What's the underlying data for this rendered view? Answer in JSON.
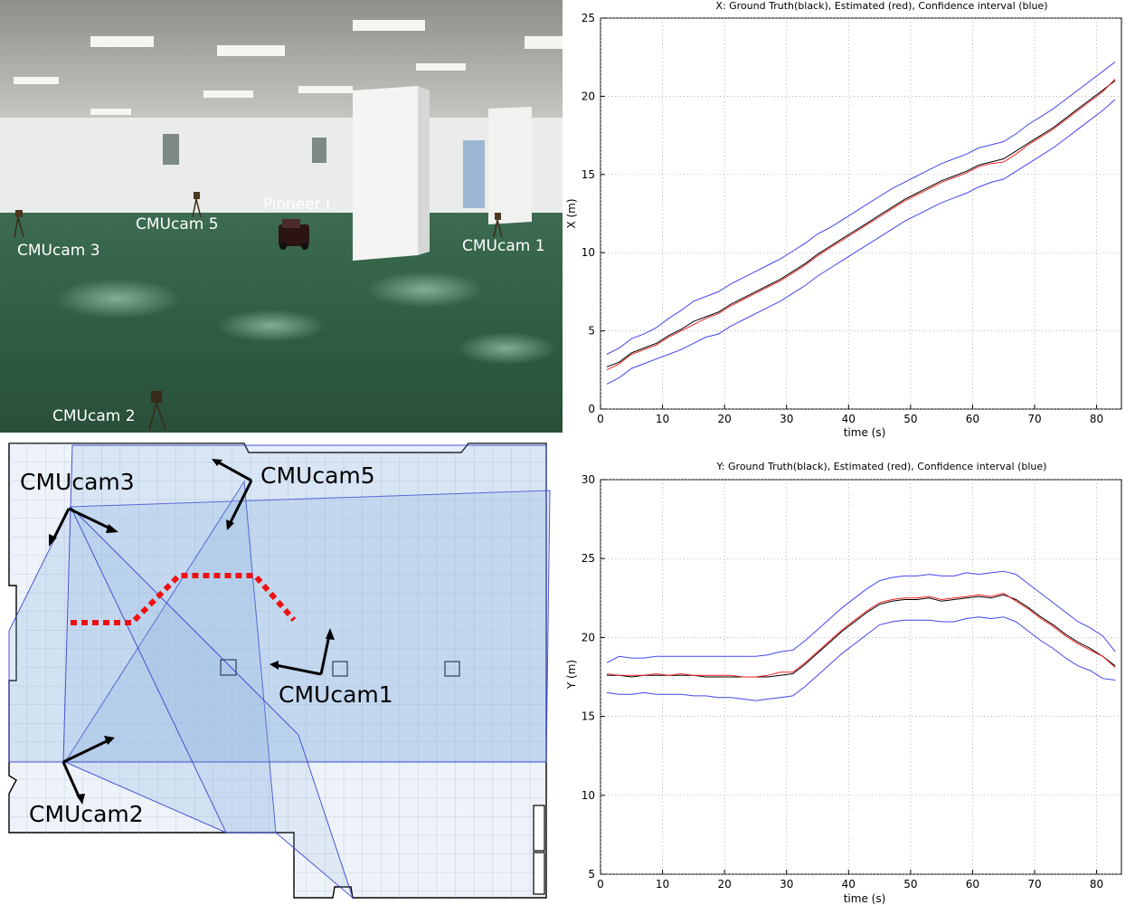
{
  "photo": {
    "labels": {
      "cam1": "CMUcam 1",
      "cam2": "CMUcam 2",
      "cam3": "CMUcam 3",
      "cam5": "CMUcam 5",
      "robot": "Pioneer I"
    }
  },
  "floorplan": {
    "labels": {
      "cam1": "CMUcam1",
      "cam2": "CMUcam2",
      "cam3": "CMUcam3",
      "cam5": "CMUcam5"
    },
    "colors": {
      "coverage": "#bcd6ef",
      "grid": "#b7c2cf",
      "edges": "#3a44cc",
      "path": "#ee1111"
    }
  },
  "chart_data": [
    {
      "type": "line",
      "title": "X: Ground Truth(black), Estimated (red), Confidence interval (blue)",
      "xlabel": "time (s)",
      "ylabel": "X (m)",
      "xlim": [
        0,
        84
      ],
      "ylim": [
        0,
        25
      ],
      "xticks": [
        "0",
        "10",
        "20",
        "30",
        "40",
        "50",
        "60",
        "70",
        "80"
      ],
      "yticks": [
        "0",
        "5",
        "10",
        "15",
        "20",
        "25"
      ],
      "grid": true,
      "x": [
        1,
        3,
        5,
        7,
        9,
        11,
        13,
        15,
        17,
        19,
        21,
        23,
        25,
        27,
        29,
        31,
        33,
        35,
        37,
        39,
        41,
        43,
        45,
        47,
        49,
        51,
        53,
        55,
        57,
        59,
        61,
        63,
        65,
        67,
        69,
        71,
        73,
        75,
        77,
        79,
        81,
        83
      ],
      "series": [
        {
          "name": "Ground Truth",
          "color": "#000000",
          "values": [
            2.7,
            3.0,
            3.6,
            3.9,
            4.2,
            4.7,
            5.1,
            5.6,
            5.9,
            6.2,
            6.7,
            7.1,
            7.5,
            7.9,
            8.3,
            8.8,
            9.3,
            9.9,
            10.4,
            10.9,
            11.4,
            11.9,
            12.4,
            12.9,
            13.4,
            13.8,
            14.2,
            14.6,
            14.9,
            15.2,
            15.6,
            15.8,
            16.0,
            16.5,
            17.0,
            17.5,
            18.0,
            18.6,
            19.2,
            19.8,
            20.4,
            21.0
          ]
        },
        {
          "name": "Estimated",
          "color": "#ee2222",
          "values": [
            2.5,
            2.9,
            3.5,
            3.8,
            4.1,
            4.6,
            5.0,
            5.4,
            5.8,
            6.1,
            6.6,
            7.0,
            7.4,
            7.8,
            8.2,
            8.7,
            9.2,
            9.8,
            10.3,
            10.8,
            11.3,
            11.8,
            12.3,
            12.8,
            13.3,
            13.7,
            14.1,
            14.5,
            14.8,
            15.1,
            15.5,
            15.7,
            15.8,
            16.3,
            16.9,
            17.4,
            17.9,
            18.5,
            19.1,
            19.7,
            20.3,
            21.1
          ]
        },
        {
          "name": "Upper bound",
          "color": "#4444ee",
          "values": [
            3.5,
            3.9,
            4.5,
            4.8,
            5.2,
            5.8,
            6.3,
            6.9,
            7.2,
            7.5,
            8.0,
            8.4,
            8.8,
            9.2,
            9.6,
            10.1,
            10.6,
            11.2,
            11.6,
            12.1,
            12.6,
            13.1,
            13.6,
            14.1,
            14.5,
            14.9,
            15.3,
            15.7,
            16.0,
            16.3,
            16.7,
            16.9,
            17.1,
            17.6,
            18.2,
            18.7,
            19.2,
            19.8,
            20.4,
            21.0,
            21.6,
            22.2
          ]
        },
        {
          "name": "Lower bound",
          "color": "#4444ee",
          "values": [
            1.6,
            2.0,
            2.6,
            2.9,
            3.2,
            3.5,
            3.8,
            4.2,
            4.6,
            4.8,
            5.3,
            5.7,
            6.1,
            6.5,
            6.9,
            7.4,
            7.9,
            8.5,
            9.0,
            9.5,
            10.0,
            10.5,
            11.0,
            11.5,
            12.0,
            12.4,
            12.8,
            13.2,
            13.5,
            13.8,
            14.2,
            14.5,
            14.7,
            15.2,
            15.7,
            16.2,
            16.7,
            17.3,
            17.9,
            18.5,
            19.1,
            19.8
          ]
        }
      ]
    },
    {
      "type": "line",
      "title": "Y: Ground Truth(black), Estimated (red), Confidence interval (blue)",
      "xlabel": "time (s)",
      "ylabel": "Y (m)",
      "xlim": [
        0,
        84
      ],
      "ylim": [
        5,
        30
      ],
      "xticks": [
        "0",
        "10",
        "20",
        "30",
        "40",
        "50",
        "60",
        "70",
        "80"
      ],
      "yticks": [
        "5",
        "10",
        "15",
        "20",
        "25",
        "30"
      ],
      "grid": true,
      "x": [
        1,
        3,
        5,
        7,
        9,
        11,
        13,
        15,
        17,
        19,
        21,
        23,
        25,
        27,
        29,
        31,
        33,
        35,
        37,
        39,
        41,
        43,
        45,
        47,
        49,
        51,
        53,
        55,
        57,
        59,
        61,
        63,
        65,
        67,
        69,
        71,
        73,
        75,
        77,
        79,
        81,
        83
      ],
      "series": [
        {
          "name": "Ground Truth",
          "color": "#000000",
          "values": [
            17.6,
            17.6,
            17.5,
            17.6,
            17.6,
            17.6,
            17.6,
            17.6,
            17.5,
            17.5,
            17.5,
            17.5,
            17.5,
            17.5,
            17.6,
            17.7,
            18.3,
            19.0,
            19.7,
            20.4,
            21.0,
            21.6,
            22.1,
            22.3,
            22.4,
            22.4,
            22.5,
            22.3,
            22.4,
            22.5,
            22.6,
            22.5,
            22.7,
            22.4,
            21.9,
            21.3,
            20.8,
            20.2,
            19.7,
            19.3,
            18.8,
            18.2
          ]
        },
        {
          "name": "Estimated",
          "color": "#ee2222",
          "values": [
            17.7,
            17.6,
            17.6,
            17.6,
            17.7,
            17.6,
            17.7,
            17.6,
            17.6,
            17.6,
            17.6,
            17.5,
            17.5,
            17.6,
            17.8,
            17.8,
            18.4,
            19.1,
            19.8,
            20.5,
            21.1,
            21.7,
            22.2,
            22.4,
            22.5,
            22.5,
            22.6,
            22.4,
            22.5,
            22.6,
            22.7,
            22.6,
            22.8,
            22.3,
            21.8,
            21.2,
            20.7,
            20.1,
            19.6,
            19.2,
            18.8,
            18.1
          ]
        },
        {
          "name": "Upper bound",
          "color": "#4444ee",
          "values": [
            18.4,
            18.8,
            18.7,
            18.7,
            18.8,
            18.8,
            18.8,
            18.8,
            18.8,
            18.8,
            18.8,
            18.8,
            18.8,
            18.9,
            19.1,
            19.2,
            19.8,
            20.5,
            21.2,
            21.9,
            22.5,
            23.1,
            23.6,
            23.8,
            23.9,
            23.9,
            24.0,
            23.9,
            23.9,
            24.1,
            24.0,
            24.1,
            24.2,
            24.0,
            23.4,
            22.8,
            22.2,
            21.6,
            21.0,
            20.6,
            20.1,
            19.1
          ]
        },
        {
          "name": "Lower bound",
          "color": "#4444ee",
          "values": [
            16.5,
            16.4,
            16.4,
            16.5,
            16.4,
            16.4,
            16.4,
            16.3,
            16.3,
            16.2,
            16.2,
            16.1,
            16.0,
            16.1,
            16.2,
            16.3,
            16.9,
            17.6,
            18.3,
            19.0,
            19.6,
            20.2,
            20.8,
            21.0,
            21.1,
            21.1,
            21.1,
            21.0,
            21.0,
            21.2,
            21.3,
            21.2,
            21.3,
            21.0,
            20.4,
            19.8,
            19.3,
            18.7,
            18.2,
            17.9,
            17.4,
            17.3
          ]
        }
      ]
    }
  ]
}
